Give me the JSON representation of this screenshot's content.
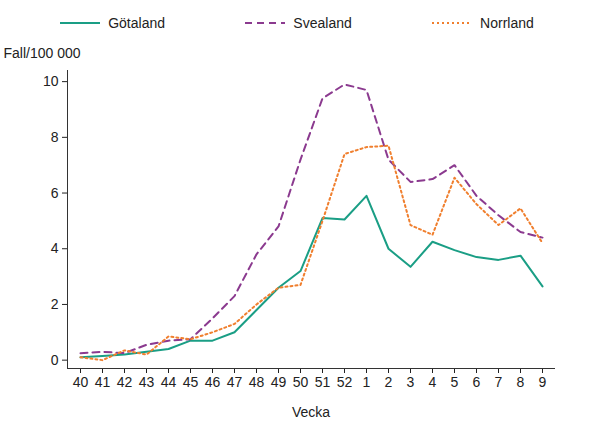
{
  "chart_data": {
    "type": "line",
    "y_label": "Fall/100 000",
    "x_label": "Vecka",
    "categories": [
      "40",
      "41",
      "42",
      "43",
      "44",
      "45",
      "46",
      "47",
      "48",
      "49",
      "50",
      "51",
      "52",
      "1",
      "2",
      "3",
      "4",
      "5",
      "6",
      "7",
      "8",
      "9"
    ],
    "series": [
      {
        "name": "Götaland",
        "color": "#1a9e85",
        "line_style": "solid",
        "values": [
          0.1,
          0.15,
          0.2,
          0.3,
          0.4,
          0.7,
          0.7,
          1.0,
          1.8,
          2.6,
          3.2,
          5.1,
          5.05,
          5.9,
          4.0,
          3.35,
          4.25,
          3.95,
          3.7,
          3.6,
          3.75,
          2.65
        ]
      },
      {
        "name": "Svealand",
        "color": "#8b3a8f",
        "line_style": "dashed",
        "values": [
          0.25,
          0.3,
          0.25,
          0.55,
          0.7,
          0.75,
          1.5,
          2.3,
          3.8,
          4.8,
          7.2,
          9.4,
          9.9,
          9.7,
          7.2,
          6.4,
          6.5,
          7.0,
          5.9,
          5.2,
          4.6,
          4.4
        ]
      },
      {
        "name": "Norrland",
        "color": "#f07f2e",
        "line_style": "dotted",
        "values": [
          0.1,
          0.0,
          0.35,
          0.2,
          0.85,
          0.75,
          1.0,
          1.3,
          2.0,
          2.6,
          2.7,
          5.0,
          7.4,
          7.65,
          7.7,
          4.85,
          4.5,
          6.55,
          5.6,
          4.85,
          5.45,
          4.2
        ]
      }
    ],
    "ylim": [
      -0.3,
      10.4
    ],
    "yticks": [
      0,
      2,
      4,
      6,
      8,
      10
    ],
    "grid": false,
    "legend": "top"
  }
}
